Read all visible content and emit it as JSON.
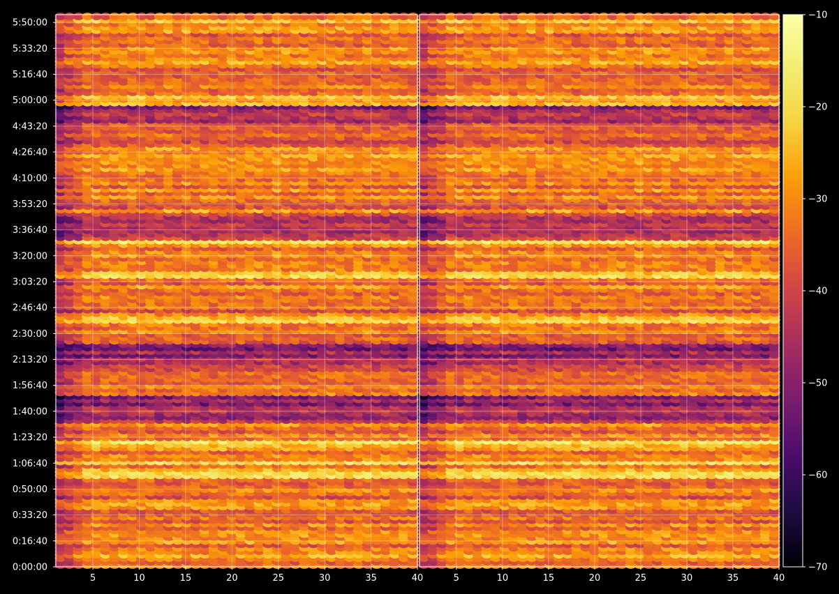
{
  "chart_data": {
    "type": "heatmap",
    "title": "",
    "xlabel": "",
    "ylabel": "",
    "panels": [
      {
        "name": "",
        "xlim": [
          1,
          40
        ]
      },
      {
        "name": "",
        "xlim": [
          1,
          40
        ]
      }
    ],
    "x_ticks": [
      5,
      10,
      15,
      20,
      25,
      30,
      35,
      40
    ],
    "x_tick_labels": [
      "5",
      "10",
      "15",
      "20",
      "25",
      "30",
      "35",
      "40"
    ],
    "y_range_seconds": [
      0,
      21300
    ],
    "y_tick_labels": [
      "0:00:00",
      "0:16:40",
      "0:33:20",
      "0:50:00",
      "1:06:40",
      "1:23:20",
      "1:40:00",
      "1:56:40",
      "2:13:20",
      "2:30:00",
      "2:46:40",
      "3:03:20",
      "3:20:00",
      "3:36:40",
      "3:53:20",
      "4:10:00",
      "4:26:40",
      "4:43:20",
      "5:00:00",
      "5:16:40",
      "5:33:20",
      "5:50:00"
    ],
    "grid": true,
    "colormap": "inferno",
    "colorbar": {
      "range": [
        -70,
        -10
      ],
      "ticks": [
        -10,
        -20,
        -30,
        -40,
        -50,
        -60,
        -70
      ],
      "tick_labels": [
        "−10",
        "−20",
        "−30",
        "−40",
        "−50",
        "−60",
        "−70"
      ]
    },
    "row_profile_note": "",
    "bright_rows_seconds": [
      20995,
      17995,
      16995,
      15295,
      12695,
      11395,
      9595,
      7895,
      4695,
      4195,
      3695
    ],
    "dark_rows_seconds": [
      17295,
      13095,
      8095,
      6095
    ],
    "background": "#000000"
  }
}
